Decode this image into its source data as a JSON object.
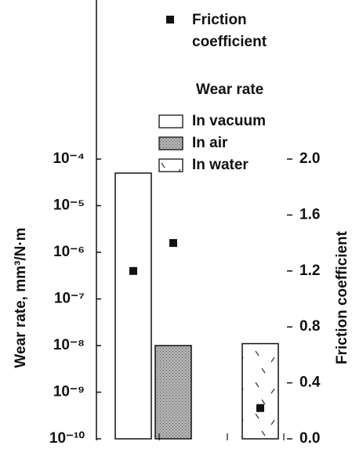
{
  "chart_data": {
    "type": "bar",
    "categories": [
      null,
      null,
      null
    ],
    "log_scale": true,
    "ylabel": "Wear rate, mm³/N·m",
    "ylim": [
      1e-10,
      0.0001
    ],
    "yticks": [
      {
        "value": 1e-10,
        "label": "10⁻¹⁰"
      },
      {
        "value": 1e-09,
        "label": "10⁻⁹"
      },
      {
        "value": 1e-08,
        "label": "10⁻⁸"
      },
      {
        "value": 1e-07,
        "label": "10⁻⁷"
      },
      {
        "value": 1e-06,
        "label": "10⁻⁶"
      },
      {
        "value": 1e-05,
        "label": "10⁻⁵"
      },
      {
        "value": 0.0001,
        "label": "10⁻⁴"
      }
    ],
    "y2label": "Friction coefficient",
    "y2lim": [
      0,
      2
    ],
    "y2ticks": [
      {
        "value": 0,
        "label": "0.0"
      },
      0.4,
      0.8,
      1.2,
      1.6,
      {
        "value": 2,
        "label": "2.0"
      }
    ],
    "legend_title": "Wear rate",
    "bars": {
      "names": [
        "In vacuum",
        "In air",
        "In water"
      ],
      "values": [
        5e-05,
        1e-08,
        1.1e-08
      ],
      "fills": [
        "white",
        "stipple",
        "dashes"
      ]
    },
    "markers": {
      "name": "Friction coefficient",
      "axis": "y2",
      "color": "#111",
      "values": [
        1.2,
        1.4,
        0.22
      ]
    }
  }
}
